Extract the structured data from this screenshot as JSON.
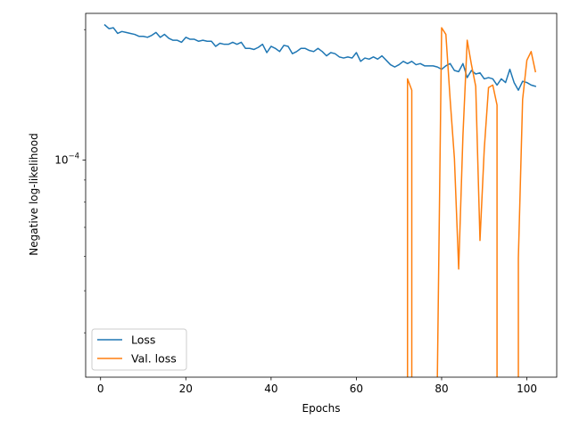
{
  "chart_data": {
    "type": "line",
    "title": "",
    "xlabel": "Epochs",
    "ylabel": "Negative log-likelihood",
    "xlim": [
      -3.5,
      107
    ],
    "ylim": [
      3.16e-05,
      0.000218
    ],
    "yscale": "log",
    "x_ticks": [
      0,
      20,
      40,
      60,
      80,
      100
    ],
    "x_tick_labels": [
      "0",
      "20",
      "40",
      "60",
      "80",
      "100"
    ],
    "y_ticks": [
      0.0001
    ],
    "y_tick_labels": [
      {
        "base": "10",
        "exp": "−4"
      }
    ],
    "grid": false,
    "legend": {
      "placement": "lower-left"
    },
    "series": [
      {
        "name": "Loss",
        "color": "#1f77b4",
        "x": [
          1,
          2,
          3,
          4,
          5,
          6,
          7,
          8,
          9,
          10,
          11,
          12,
          13,
          14,
          15,
          16,
          17,
          18,
          19,
          20,
          21,
          22,
          23,
          24,
          25,
          26,
          27,
          28,
          29,
          30,
          31,
          32,
          33,
          34,
          35,
          36,
          37,
          38,
          39,
          40,
          41,
          42,
          43,
          44,
          45,
          46,
          47,
          48,
          49,
          50,
          51,
          52,
          53,
          54,
          55,
          56,
          57,
          58,
          59,
          60,
          61,
          62,
          63,
          64,
          65,
          66,
          67,
          68,
          69,
          70,
          71,
          72,
          73,
          74,
          75,
          76,
          77,
          78,
          79,
          80,
          81,
          82,
          83,
          84,
          85,
          86,
          87,
          88,
          89,
          90,
          91,
          92,
          93,
          94,
          95,
          96,
          97,
          98,
          99,
          100,
          101,
          102
        ],
        "values": [
          0.000205,
          0.000201,
          0.000202,
          0.000196,
          0.000198,
          0.000197,
          0.000196,
          0.000195,
          0.000193,
          0.000193,
          0.000192,
          0.000194,
          0.000197,
          0.000192,
          0.000195,
          0.000191,
          0.000189,
          0.000189,
          0.000187,
          0.000192,
          0.00019,
          0.00019,
          0.000188,
          0.000189,
          0.000188,
          0.000188,
          0.000183,
          0.000186,
          0.000185,
          0.000185,
          0.000187,
          0.000185,
          0.000187,
          0.000181,
          0.000181,
          0.00018,
          0.000182,
          0.000185,
          0.000177,
          0.000183,
          0.000181,
          0.000178,
          0.000184,
          0.000183,
          0.000176,
          0.000178,
          0.000181,
          0.000181,
          0.000179,
          0.000178,
          0.000181,
          0.000178,
          0.000174,
          0.000177,
          0.000176,
          0.000173,
          0.000172,
          0.000173,
          0.000172,
          0.000177,
          0.000169,
          0.000172,
          0.000171,
          0.000173,
          0.000171,
          0.000174,
          0.00017,
          0.000166,
          0.000164,
          0.000166,
          0.000169,
          0.000167,
          0.000169,
          0.000166,
          0.000167,
          0.000165,
          0.000165,
          0.000165,
          0.000164,
          0.000162,
          0.000165,
          0.000167,
          0.000161,
          0.00016,
          0.000167,
          0.000155,
          0.000161,
          0.000158,
          0.000159,
          0.000154,
          0.000155,
          0.000154,
          0.000149,
          0.000154,
          0.000151,
          0.000162,
          0.000151,
          0.000145,
          0.000152,
          0.000151,
          0.000149,
          0.000148
        ]
      },
      {
        "name": "Val. loss",
        "color": "#ff7f0e",
        "segments": [
          {
            "x": [
              72,
              72,
              73,
              73
            ],
            "values": [
              3.16e-05,
              0.000154,
              0.000145,
              3.16e-05
            ]
          },
          {
            "x": [
              79,
              80,
              81,
              82,
              83,
              84,
              85,
              86,
              87,
              88,
              89,
              90,
              91,
              92,
              93,
              93
            ],
            "values": [
              3.16e-05,
              0.000202,
              0.000195,
              0.000138,
              0.000101,
              5.61e-05,
              0.000114,
              0.000189,
              0.000166,
              0.000148,
              6.53e-05,
              0.000106,
              0.000147,
              0.000149,
              0.000134,
              3.16e-05
            ]
          },
          {
            "x": [
              98,
              98,
              99,
              100,
              101,
              102
            ],
            "values": [
              3.16e-05,
              5.94e-05,
              0.000138,
              0.00017,
              0.000178,
              0.00016
            ]
          }
        ]
      }
    ]
  }
}
